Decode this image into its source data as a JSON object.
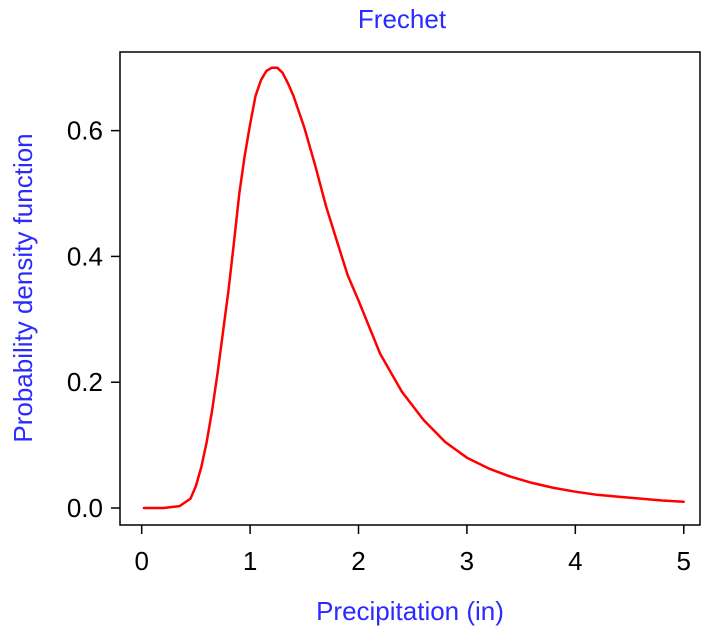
{
  "chart_data": {
    "type": "line",
    "title": "Frechet",
    "xlabel": "Precipitation (in)",
    "ylabel": "Probability density function",
    "xlim": [
      -0.2,
      5.15
    ],
    "ylim": [
      -0.027,
      0.725
    ],
    "x_ticks": [
      0,
      1,
      2,
      3,
      4,
      5
    ],
    "x_tick_labels": [
      "0",
      "1",
      "2",
      "3",
      "4",
      "5"
    ],
    "y_ticks": [
      0.0,
      0.2,
      0.4,
      0.6
    ],
    "y_tick_labels": [
      "0.0",
      "0.2",
      "0.4",
      "0.6"
    ],
    "grid": false,
    "legend": "none",
    "colors": {
      "line": "#ff0000",
      "title": "#2b2bff",
      "axis_title": "#2b2bff",
      "axes": "#000000"
    },
    "series": [
      {
        "x": [
          0.02,
          0.2,
          0.35,
          0.45,
          0.5,
          0.55,
          0.6,
          0.65,
          0.7,
          0.75,
          0.8,
          0.85,
          0.9,
          0.95,
          1.0,
          1.05,
          1.1,
          1.15,
          1.2,
          1.25,
          1.3,
          1.35,
          1.4,
          1.5,
          1.6,
          1.7,
          1.8,
          1.9,
          2.0,
          2.2,
          2.4,
          2.6,
          2.8,
          3.0,
          3.2,
          3.4,
          3.6,
          3.8,
          4.0,
          4.2,
          4.4,
          4.6,
          4.8,
          5.0
        ],
        "y": [
          0.0,
          0.0,
          0.003,
          0.015,
          0.035,
          0.065,
          0.105,
          0.155,
          0.215,
          0.28,
          0.345,
          0.42,
          0.5,
          0.56,
          0.61,
          0.655,
          0.68,
          0.695,
          0.7,
          0.7,
          0.692,
          0.675,
          0.655,
          0.605,
          0.545,
          0.48,
          0.425,
          0.37,
          0.33,
          0.245,
          0.185,
          0.14,
          0.105,
          0.08,
          0.063,
          0.05,
          0.04,
          0.032,
          0.026,
          0.021,
          0.018,
          0.015,
          0.012,
          0.01
        ]
      }
    ]
  }
}
